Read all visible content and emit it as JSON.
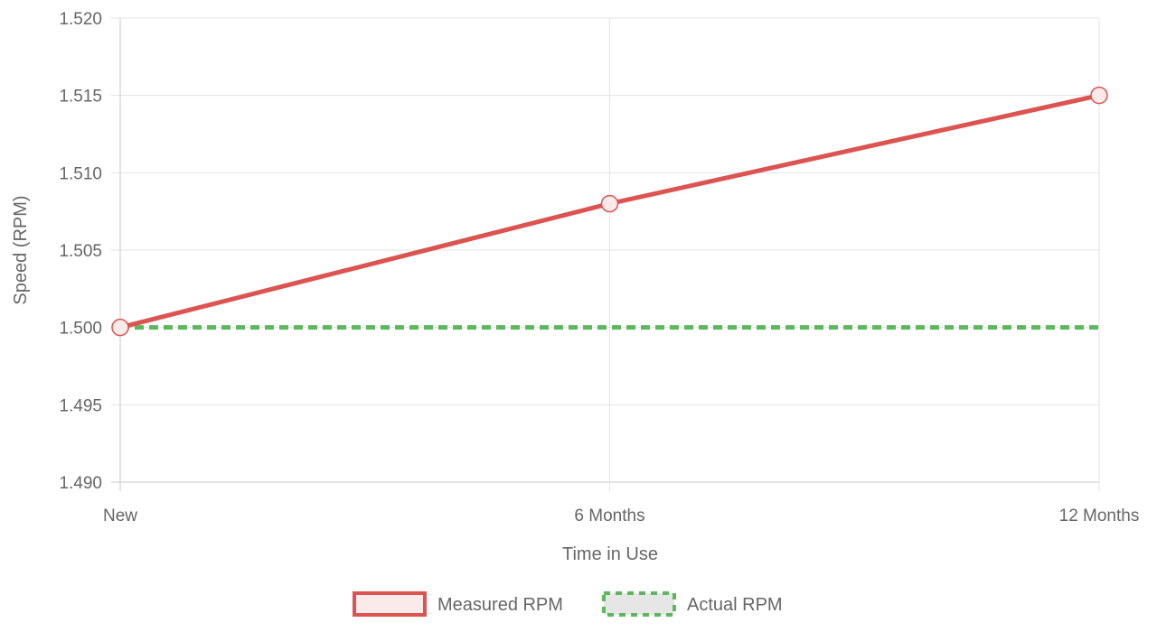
{
  "chart_data": {
    "type": "line",
    "title": "",
    "xlabel": "Time in Use",
    "ylabel": "Speed (RPM)",
    "categories": [
      "New",
      "6 Months",
      "12 Months"
    ],
    "ylim": [
      1.49,
      1.52
    ],
    "yticks": [
      "1.520",
      "1.515",
      "1.510",
      "1.505",
      "1.500",
      "1.495",
      "1.490"
    ],
    "grid": true,
    "legend_position": "bottom",
    "series": [
      {
        "name": "Measured RPM",
        "values": [
          1.5,
          1.508,
          1.515
        ],
        "color": "#dc5350",
        "fill": "#fbeaea",
        "dashed": false,
        "points": true
      },
      {
        "name": "Actual RPM",
        "values": [
          1.5,
          1.5,
          1.5
        ],
        "color": "#5cb85c",
        "fill": "#e6e6e6",
        "dashed": true,
        "points": false
      }
    ]
  }
}
